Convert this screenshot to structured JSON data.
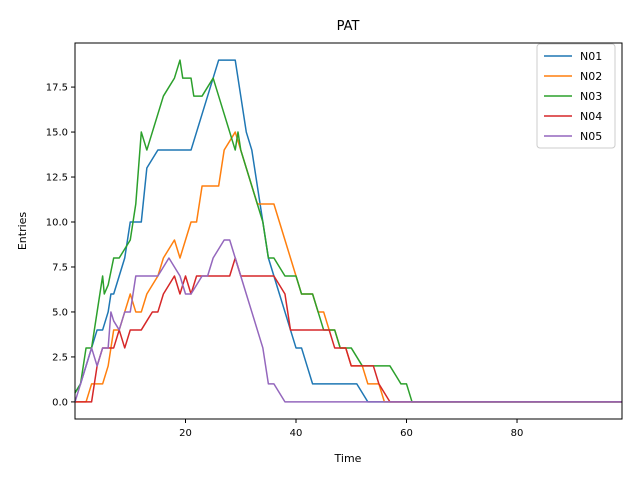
{
  "chart_data": {
    "type": "line",
    "title": "PAT",
    "xlabel": "Time",
    "ylabel": "Entries",
    "xlim": [
      0,
      99
    ],
    "ylim": [
      -0.95,
      19.95
    ],
    "xticks": [
      20,
      40,
      60,
      80
    ],
    "yticks": [
      0.0,
      2.5,
      5.0,
      7.5,
      10.0,
      12.5,
      15.0,
      17.5
    ],
    "xtick_labels": [
      "20",
      "40",
      "60",
      "80"
    ],
    "ytick_labels": [
      "0.0",
      "2.5",
      "5.0",
      "7.5",
      "10.0",
      "12.5",
      "15.0",
      "17.5"
    ],
    "grid": false,
    "legend_position": "top-right",
    "series": [
      {
        "name": "N01",
        "color": "#1f77b4",
        "points": [
          [
            0,
            0.5
          ],
          [
            1,
            1
          ],
          [
            2,
            2
          ],
          [
            3,
            3
          ],
          [
            4,
            4
          ],
          [
            5,
            4
          ],
          [
            6,
            5
          ],
          [
            6.5,
            6
          ],
          [
            7,
            6
          ],
          [
            8,
            7
          ],
          [
            9,
            8
          ],
          [
            10,
            10
          ],
          [
            11,
            10
          ],
          [
            12,
            10
          ],
          [
            13,
            13
          ],
          [
            14,
            13.5
          ],
          [
            15,
            14
          ],
          [
            16,
            14
          ],
          [
            17,
            14
          ],
          [
            18,
            14
          ],
          [
            19,
            14
          ],
          [
            20,
            14
          ],
          [
            21,
            14
          ],
          [
            22,
            15
          ],
          [
            23,
            16
          ],
          [
            24,
            17
          ],
          [
            25,
            18
          ],
          [
            26,
            19
          ],
          [
            27,
            19
          ],
          [
            28,
            19
          ],
          [
            29,
            19
          ],
          [
            30,
            17
          ],
          [
            31,
            15
          ],
          [
            32,
            14
          ],
          [
            33,
            12
          ],
          [
            34,
            10
          ],
          [
            35,
            8
          ],
          [
            36,
            7
          ],
          [
            37,
            6
          ],
          [
            38,
            5
          ],
          [
            39,
            4
          ],
          [
            40,
            3
          ],
          [
            41,
            3
          ],
          [
            42,
            2
          ],
          [
            43,
            1
          ],
          [
            44,
            1
          ],
          [
            45,
            1
          ],
          [
            46,
            1
          ],
          [
            47,
            1
          ],
          [
            48,
            1
          ],
          [
            49,
            1
          ],
          [
            50,
            1
          ],
          [
            51,
            1
          ],
          [
            52,
            0.5
          ],
          [
            53,
            0
          ],
          [
            99,
            0
          ]
        ]
      },
      {
        "name": "N02",
        "color": "#ff7f0e",
        "points": [
          [
            0,
            0
          ],
          [
            1,
            0
          ],
          [
            2,
            0
          ],
          [
            3,
            1
          ],
          [
            4,
            1
          ],
          [
            5,
            1
          ],
          [
            6,
            2
          ],
          [
            7,
            4
          ],
          [
            8,
            4
          ],
          [
            9,
            5
          ],
          [
            10,
            6
          ],
          [
            11,
            5
          ],
          [
            12,
            5
          ],
          [
            13,
            6
          ],
          [
            14,
            6.5
          ],
          [
            15,
            7
          ],
          [
            16,
            8
          ],
          [
            17,
            8.5
          ],
          [
            18,
            9
          ],
          [
            19,
            8
          ],
          [
            20,
            9
          ],
          [
            21,
            10
          ],
          [
            22,
            10
          ],
          [
            23,
            12
          ],
          [
            24,
            12
          ],
          [
            25,
            12
          ],
          [
            26,
            12
          ],
          [
            26.5,
            13
          ],
          [
            27,
            14
          ],
          [
            28,
            14.5
          ],
          [
            29,
            15
          ],
          [
            30,
            14
          ],
          [
            31,
            13
          ],
          [
            32,
            12
          ],
          [
            33,
            11
          ],
          [
            34,
            11
          ],
          [
            35,
            11
          ],
          [
            36,
            11
          ],
          [
            37,
            10
          ],
          [
            38,
            9
          ],
          [
            39,
            8
          ],
          [
            40,
            7
          ],
          [
            41,
            6
          ],
          [
            42,
            6
          ],
          [
            43,
            6
          ],
          [
            44,
            5
          ],
          [
            45,
            5
          ],
          [
            46,
            4
          ],
          [
            47,
            4
          ],
          [
            48,
            3
          ],
          [
            49,
            3
          ],
          [
            50,
            2
          ],
          [
            51,
            2
          ],
          [
            52,
            2
          ],
          [
            53,
            1
          ],
          [
            54,
            1
          ],
          [
            55,
            1
          ],
          [
            56,
            0
          ],
          [
            99,
            0
          ]
        ]
      },
      {
        "name": "N03",
        "color": "#2ca02c",
        "points": [
          [
            0,
            0.5
          ],
          [
            1,
            1
          ],
          [
            2,
            3
          ],
          [
            3,
            3
          ],
          [
            4,
            5
          ],
          [
            5,
            7
          ],
          [
            5.3,
            6
          ],
          [
            6,
            6.5
          ],
          [
            7,
            8
          ],
          [
            8,
            8
          ],
          [
            9,
            8.5
          ],
          [
            10,
            9
          ],
          [
            11,
            11
          ],
          [
            11.5,
            13
          ],
          [
            12,
            15
          ],
          [
            13,
            14
          ],
          [
            14,
            15
          ],
          [
            15,
            16
          ],
          [
            16,
            17
          ],
          [
            17,
            17.5
          ],
          [
            18,
            18
          ],
          [
            19,
            19
          ],
          [
            19.5,
            18
          ],
          [
            20,
            18
          ],
          [
            21,
            18
          ],
          [
            21.5,
            17
          ],
          [
            22,
            17
          ],
          [
            23,
            17
          ],
          [
            24,
            17.5
          ],
          [
            25,
            18
          ],
          [
            26,
            17
          ],
          [
            27,
            16
          ],
          [
            28,
            15
          ],
          [
            29,
            14
          ],
          [
            29.5,
            15
          ],
          [
            30,
            14
          ],
          [
            31,
            13
          ],
          [
            32,
            12
          ],
          [
            33,
            11
          ],
          [
            34,
            10
          ],
          [
            35,
            8
          ],
          [
            36,
            8
          ],
          [
            37,
            7.5
          ],
          [
            38,
            7
          ],
          [
            39,
            7
          ],
          [
            40,
            7
          ],
          [
            41,
            6
          ],
          [
            42,
            6
          ],
          [
            43,
            6
          ],
          [
            44,
            5
          ],
          [
            45,
            4
          ],
          [
            46,
            4
          ],
          [
            47,
            4
          ],
          [
            48,
            3
          ],
          [
            49,
            3
          ],
          [
            50,
            3
          ],
          [
            51,
            2.5
          ],
          [
            52,
            2
          ],
          [
            53,
            2
          ],
          [
            54,
            2
          ],
          [
            55,
            2
          ],
          [
            56,
            2
          ],
          [
            57,
            2
          ],
          [
            58,
            1.5
          ],
          [
            59,
            1
          ],
          [
            60,
            1
          ],
          [
            61,
            0
          ],
          [
            99,
            0
          ]
        ]
      },
      {
        "name": "N04",
        "color": "#d62728",
        "points": [
          [
            0,
            0
          ],
          [
            1,
            0
          ],
          [
            2,
            0
          ],
          [
            3,
            0
          ],
          [
            4,
            2
          ],
          [
            5,
            3
          ],
          [
            6,
            3
          ],
          [
            7,
            3
          ],
          [
            8,
            4
          ],
          [
            9,
            3
          ],
          [
            10,
            4
          ],
          [
            11,
            4
          ],
          [
            12,
            4
          ],
          [
            13,
            4.5
          ],
          [
            14,
            5
          ],
          [
            15,
            5
          ],
          [
            16,
            6
          ],
          [
            17,
            6.5
          ],
          [
            18,
            7
          ],
          [
            19,
            6
          ],
          [
            20,
            7
          ],
          [
            21,
            6
          ],
          [
            22,
            7
          ],
          [
            23,
            7
          ],
          [
            24,
            7
          ],
          [
            25,
            7
          ],
          [
            26,
            7
          ],
          [
            27,
            7
          ],
          [
            28,
            7
          ],
          [
            29,
            8
          ],
          [
            30,
            7
          ],
          [
            31,
            7
          ],
          [
            32,
            7
          ],
          [
            33,
            7
          ],
          [
            34,
            7
          ],
          [
            35,
            7
          ],
          [
            36,
            7
          ],
          [
            37,
            6.5
          ],
          [
            38,
            6
          ],
          [
            39,
            4
          ],
          [
            40,
            4
          ],
          [
            41,
            4
          ],
          [
            42,
            4
          ],
          [
            43,
            4
          ],
          [
            44,
            4
          ],
          [
            45,
            4
          ],
          [
            46,
            4
          ],
          [
            47,
            3
          ],
          [
            48,
            3
          ],
          [
            49,
            3
          ],
          [
            50,
            2
          ],
          [
            51,
            2
          ],
          [
            52,
            2
          ],
          [
            53,
            2
          ],
          [
            54,
            2
          ],
          [
            55,
            1
          ],
          [
            56,
            0.5
          ],
          [
            57,
            0
          ],
          [
            99,
            0
          ]
        ]
      },
      {
        "name": "N05",
        "color": "#9467bd",
        "points": [
          [
            0,
            0
          ],
          [
            1,
            1
          ],
          [
            2,
            2
          ],
          [
            3,
            3
          ],
          [
            4,
            2
          ],
          [
            5,
            3
          ],
          [
            6,
            3
          ],
          [
            6.5,
            5
          ],
          [
            7,
            4.5
          ],
          [
            8,
            4
          ],
          [
            9,
            5
          ],
          [
            10,
            5
          ],
          [
            11,
            7
          ],
          [
            12,
            7
          ],
          [
            13,
            7
          ],
          [
            14,
            7
          ],
          [
            15,
            7
          ],
          [
            16,
            7.5
          ],
          [
            17,
            8
          ],
          [
            18,
            7.5
          ],
          [
            19,
            7
          ],
          [
            20,
            6
          ],
          [
            21,
            6
          ],
          [
            22,
            6.5
          ],
          [
            23,
            7
          ],
          [
            24,
            7
          ],
          [
            25,
            8
          ],
          [
            26,
            8.5
          ],
          [
            27,
            9
          ],
          [
            28,
            9
          ],
          [
            29,
            8
          ],
          [
            30,
            7
          ],
          [
            31,
            6
          ],
          [
            32,
            5
          ],
          [
            33,
            4
          ],
          [
            34,
            3
          ],
          [
            35,
            1
          ],
          [
            36,
            1
          ],
          [
            37,
            0.5
          ],
          [
            38,
            0
          ],
          [
            99,
            0
          ]
        ]
      }
    ]
  }
}
